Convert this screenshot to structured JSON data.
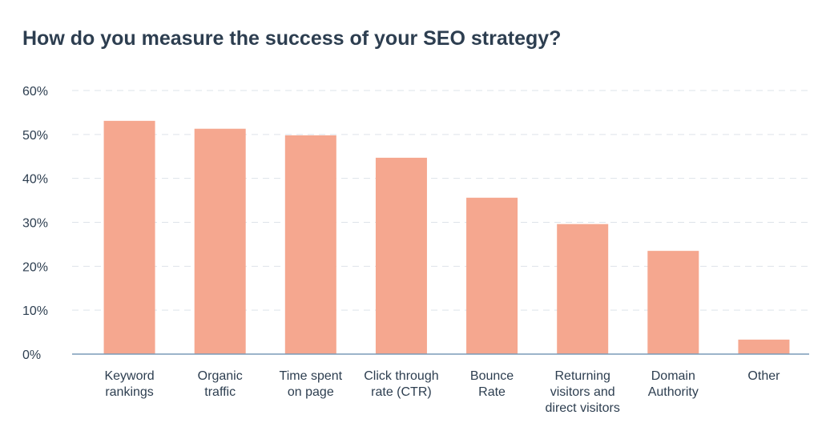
{
  "chart_data": {
    "type": "bar",
    "title": "How do you measure the success of your SEO strategy?",
    "categories": [
      "Keyword\nrankings",
      "Organic\ntraffic",
      "Time spent\non page",
      "Click through\nrate (CTR)",
      "Bounce\nRate",
      "Returning\nvisitors and\ndirect visitors",
      "Domain\nAuthority",
      "Other"
    ],
    "values": [
      53.1,
      51.3,
      49.8,
      44.7,
      35.6,
      29.6,
      23.5,
      3.3
    ],
    "color": "#f5a78f",
    "ylim": [
      0,
      60
    ],
    "yticks": [
      {
        "value": 0,
        "label": "0%"
      },
      {
        "value": 10,
        "label": "10%"
      },
      {
        "value": 20,
        "label": "20%"
      },
      {
        "value": 30,
        "label": "30%"
      },
      {
        "value": 40,
        "label": "40%"
      },
      {
        "value": 50,
        "label": "50%"
      },
      {
        "value": 60,
        "label": "60%"
      }
    ],
    "grid": true
  }
}
